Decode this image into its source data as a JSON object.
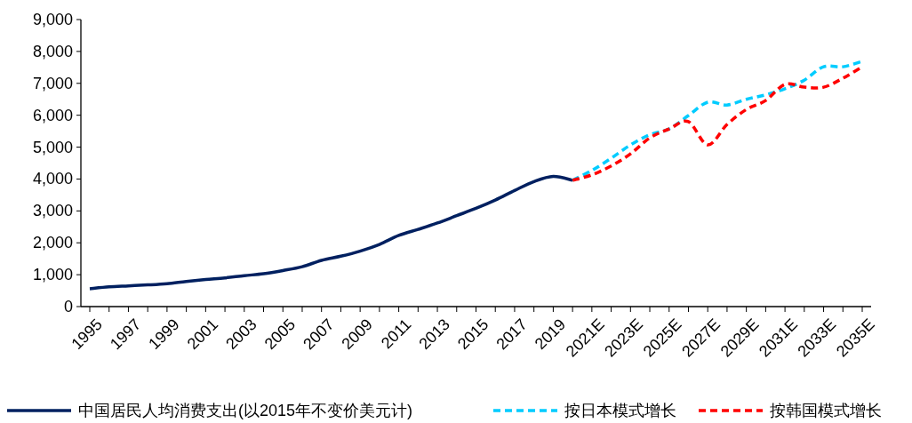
{
  "chart_data": {
    "type": "line",
    "categories": [
      "1995",
      null,
      "1997",
      null,
      "1999",
      null,
      "2001",
      null,
      "2003",
      null,
      "2005",
      null,
      "2007",
      null,
      "2009",
      null,
      "2011",
      null,
      "2013",
      null,
      "2015",
      null,
      "2017",
      null,
      "2019",
      null,
      "2021E",
      null,
      "2023E",
      null,
      "2025E",
      null,
      "2027E",
      null,
      "2029E",
      null,
      "2031E",
      null,
      "2033E",
      null,
      "2035E"
    ],
    "series": [
      {
        "name": "中国居民人均消费支出(以2015年不变价美元计)",
        "color": "#002060",
        "line_style": "solid",
        "values": [
          560,
          620,
          650,
          680,
          720,
          790,
          850,
          900,
          970,
          1030,
          1130,
          1250,
          1450,
          1580,
          1740,
          1950,
          2230,
          2420,
          2620,
          2850,
          3080,
          3340,
          3640,
          3920,
          4080,
          3960,
          null,
          null,
          null,
          null,
          null,
          null,
          null,
          null,
          null,
          null,
          null,
          null,
          null,
          null,
          null
        ]
      },
      {
        "name": "按日本模式增长",
        "color": "#00ccff",
        "line_style": "dashed",
        "values": [
          null,
          null,
          null,
          null,
          null,
          null,
          null,
          null,
          null,
          null,
          null,
          null,
          null,
          null,
          null,
          null,
          null,
          null,
          null,
          null,
          null,
          null,
          null,
          null,
          null,
          3960,
          4270,
          4650,
          5070,
          5390,
          5570,
          5990,
          6410,
          6320,
          6500,
          6640,
          6830,
          7100,
          7520,
          7520,
          7690
        ]
      },
      {
        "name": "按韩国模式增长",
        "color": "#ff0000",
        "line_style": "dashed",
        "values": [
          null,
          null,
          null,
          null,
          null,
          null,
          null,
          null,
          null,
          null,
          null,
          null,
          null,
          null,
          null,
          null,
          null,
          null,
          null,
          null,
          null,
          null,
          null,
          null,
          null,
          3960,
          4130,
          4410,
          4790,
          5290,
          5570,
          5800,
          5070,
          5710,
          6180,
          6460,
          6970,
          6880,
          6880,
          7160,
          7520
        ]
      }
    ],
    "ylim": [
      0,
      9000
    ],
    "yticks": [
      0,
      {
        "value": 1000,
        "label": "1,000"
      },
      {
        "value": 2000,
        "label": "2,000"
      },
      {
        "value": 3000,
        "label": "3,000"
      },
      {
        "value": 4000,
        "label": "4,000"
      },
      {
        "value": 5000,
        "label": "5,000"
      },
      {
        "value": 6000,
        "label": "6,000"
      },
      {
        "value": 7000,
        "label": "7,000"
      },
      {
        "value": 8000,
        "label": "8,000"
      },
      {
        "value": 9000,
        "label": "9,000"
      }
    ],
    "legend": "bottom",
    "marker": "none",
    "grid": false
  }
}
